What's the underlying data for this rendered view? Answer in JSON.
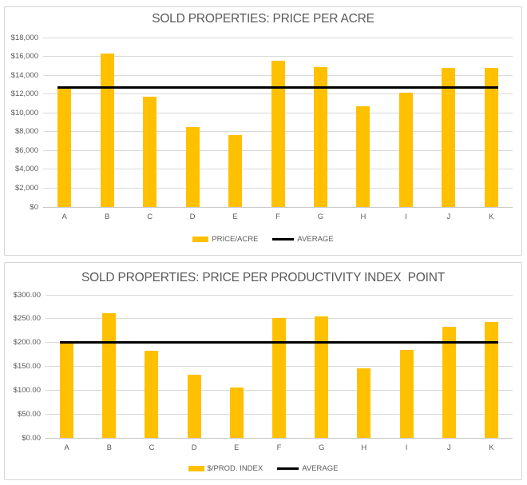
{
  "page": {
    "background": "#FFFFFF"
  },
  "colors": {
    "bar_fill": "#FFC000",
    "average_line": "#000000",
    "gridline": "#D9D9D9",
    "axis_baseline": "#C6C6C6",
    "chart_border": "#D5D5D5",
    "text": "#595959"
  },
  "chart_data": [
    {
      "type": "bar",
      "title": "SOLD PROPERTIES: PRICE PER ACRE",
      "categories": [
        "A",
        "B",
        "C",
        "D",
        "E",
        "F",
        "G",
        "H",
        "I",
        "J",
        "K"
      ],
      "series": [
        {
          "name": "PRICE/ACRE",
          "render": "bar",
          "color": "#FFC000",
          "values": [
            12600,
            16300,
            11700,
            8500,
            7600,
            15500,
            14900,
            10700,
            12100,
            14800,
            14800
          ]
        },
        {
          "name": "AVERAGE",
          "render": "line",
          "color": "#000000",
          "value": 12700
        }
      ],
      "ylim": [
        0,
        18000
      ],
      "ytick_values": [
        0,
        2000,
        4000,
        6000,
        8000,
        10000,
        12000,
        14000,
        16000,
        18000
      ],
      "ytick_labels": [
        "$0",
        "$2,000",
        "$4,000",
        "$6,000",
        "$8,000",
        "$10,000",
        "$12,000",
        "$14,000",
        "$16,000",
        "$18,000"
      ],
      "grid": true,
      "legend_position": "bottom"
    },
    {
      "type": "bar",
      "title": "SOLD PROPERTIES: PRICE PER PRODUCTIVITY INDEX  POINT",
      "categories": [
        "A",
        "B",
        "C",
        "D",
        "E",
        "F",
        "G",
        "H",
        "I",
        "J",
        "K"
      ],
      "series": [
        {
          "name": "$/PROD. INDEX",
          "render": "bar",
          "color": "#FFC000",
          "values": [
            203,
            261,
            182,
            132,
            106,
            252,
            254,
            146,
            185,
            233,
            243
          ]
        },
        {
          "name": "AVERAGE",
          "render": "line",
          "color": "#000000",
          "value": 200
        }
      ],
      "ylim": [
        0,
        300
      ],
      "ytick_values": [
        0,
        50,
        100,
        150,
        200,
        250,
        300
      ],
      "ytick_labels": [
        "$0.00",
        "$50.00",
        "$100.00",
        "$150.00",
        "$200.00",
        "$250.00",
        "$300.00"
      ],
      "grid": true,
      "legend_position": "bottom"
    }
  ]
}
